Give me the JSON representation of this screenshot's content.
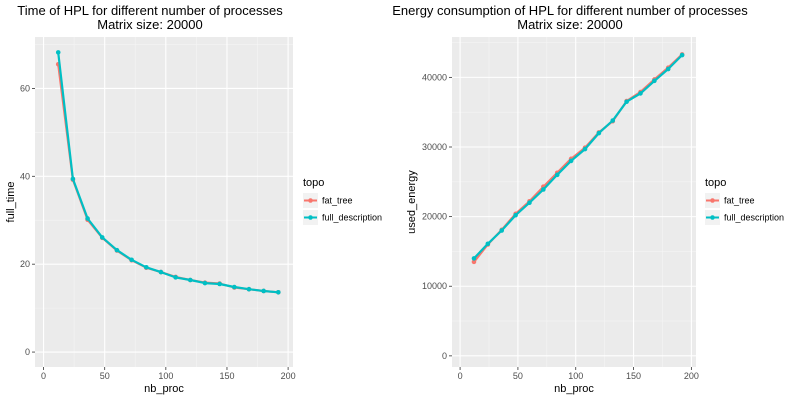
{
  "chart_data": [
    {
      "type": "line",
      "title": "Time of HPL for different number of processes",
      "subtitle": "Matrix size: 20000",
      "xlabel": "nb_proc",
      "ylabel": "full_time",
      "xlim": [
        -7,
        204
      ],
      "ylim": [
        -3.4,
        71.7
      ],
      "xticks": [
        0,
        50,
        100,
        150,
        200
      ],
      "yticks": [
        0,
        20,
        40,
        60
      ],
      "grid": true,
      "legend_position": "right",
      "legend_title": "topo",
      "legend_entries": [
        "fat_tree",
        "full_description"
      ],
      "x": [
        12,
        24,
        36,
        48,
        60,
        72,
        84,
        96,
        108,
        120,
        132,
        144,
        156,
        168,
        180,
        192
      ],
      "series": [
        {
          "name": "fat_tree",
          "color": "#f8766d",
          "values": [
            65.5,
            39.2,
            30.1,
            26.0,
            23.1,
            20.9,
            19.2,
            18.2,
            17.1,
            16.4,
            15.8,
            15.6,
            14.7,
            14.3,
            13.9,
            13.6
          ]
        },
        {
          "name": "full_description",
          "color": "#00bfc4",
          "values": [
            68.2,
            39.4,
            30.4,
            26.1,
            23.2,
            21.0,
            19.3,
            18.2,
            17.0,
            16.4,
            15.7,
            15.5,
            14.8,
            14.3,
            13.9,
            13.6
          ]
        }
      ]
    },
    {
      "type": "line",
      "title": "Energy consumption of HPL for different number of processes",
      "subtitle": "Matrix size: 20000",
      "xlabel": "nb_proc",
      "ylabel": "used_energy",
      "xlim": [
        -7,
        204
      ],
      "ylim": [
        -1600,
        45800
      ],
      "xticks": [
        0,
        50,
        100,
        150,
        200
      ],
      "yticks": [
        0,
        10000,
        20000,
        30000,
        40000
      ],
      "grid": true,
      "legend_position": "right",
      "legend_title": "topo",
      "legend_entries": [
        "fat_tree",
        "full_description"
      ],
      "x": [
        12,
        24,
        36,
        48,
        60,
        72,
        84,
        96,
        108,
        120,
        132,
        144,
        156,
        168,
        180,
        192
      ],
      "series": [
        {
          "name": "fat_tree",
          "color": "#f8766d",
          "values": [
            13500,
            16000,
            18100,
            20400,
            22200,
            24300,
            26300,
            28300,
            29900,
            32100,
            33700,
            36600,
            37900,
            39700,
            41400,
            43300
          ]
        },
        {
          "name": "full_description",
          "color": "#00bfc4",
          "values": [
            14000,
            16100,
            18000,
            20200,
            22000,
            23900,
            26000,
            28000,
            29700,
            32000,
            33800,
            36500,
            37700,
            39500,
            41200,
            43200
          ]
        }
      ]
    }
  ]
}
